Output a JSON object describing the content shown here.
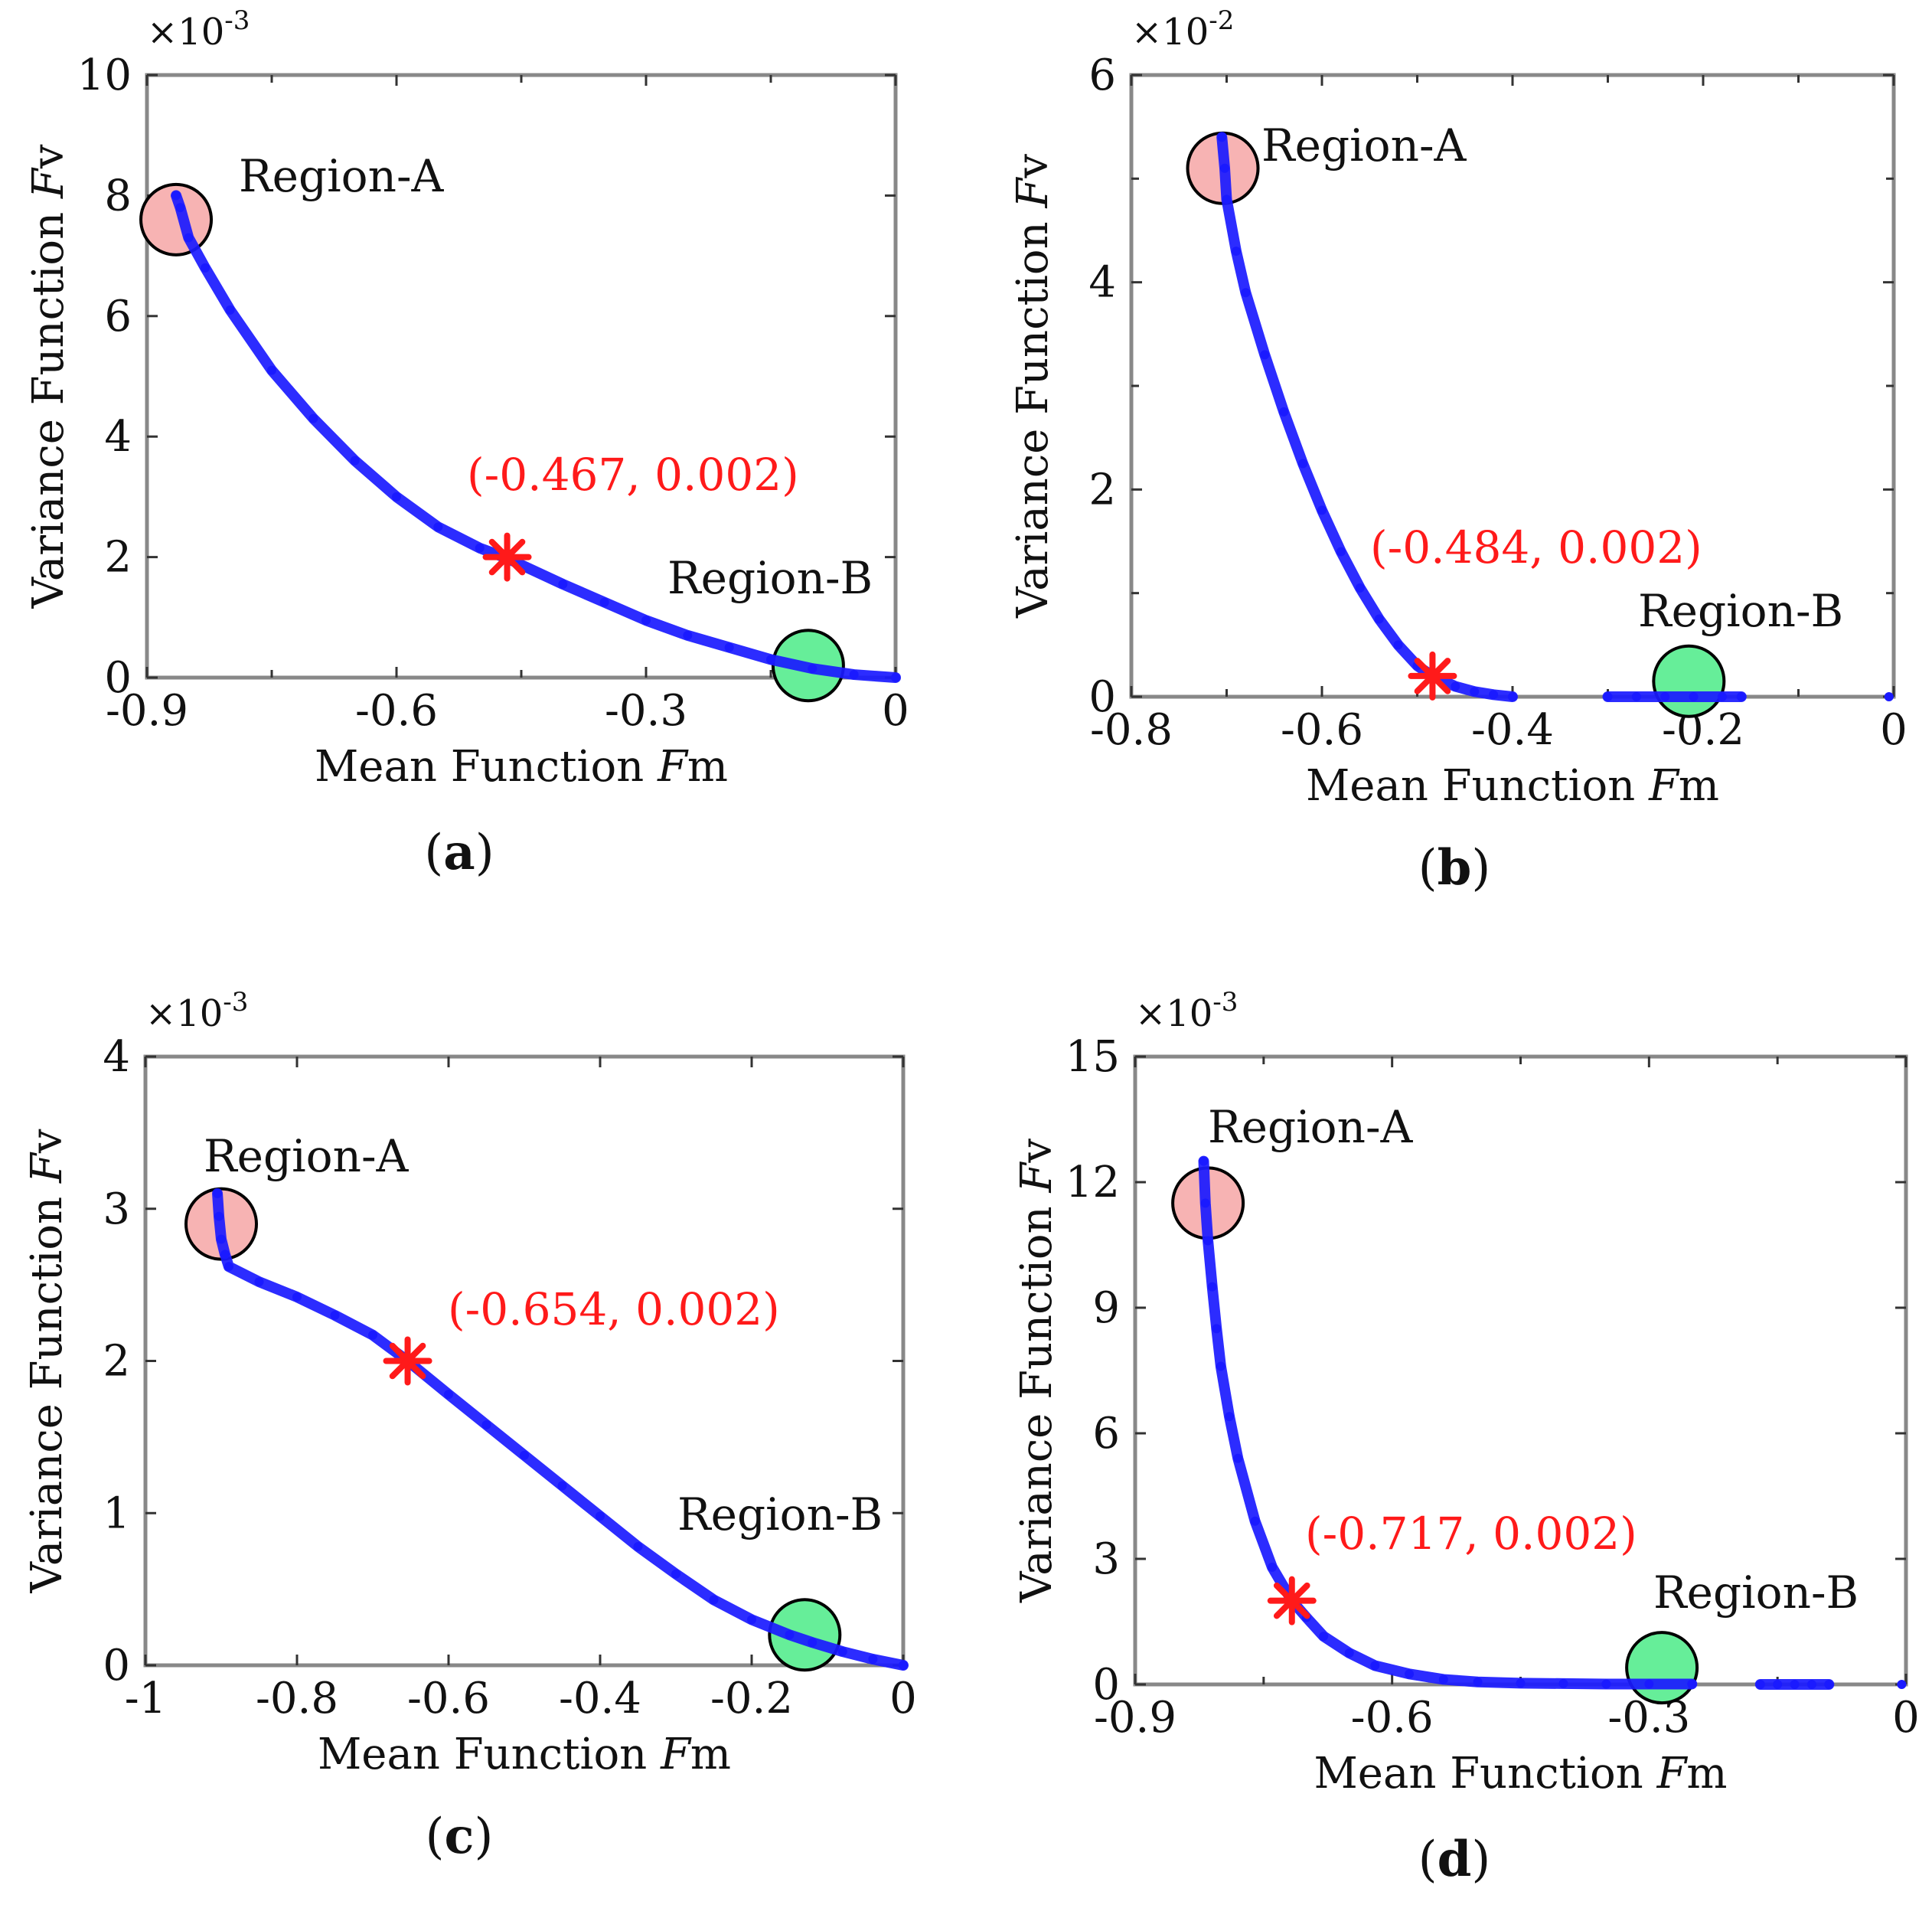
{
  "colors": {
    "curve": "#1a1aff",
    "marker": "#ff1a1a",
    "region_a_fill": "#f7b3b3",
    "region_b_fill": "#66ee99",
    "axes_frame": "#888888"
  },
  "chart_data": [
    {
      "type": "scatter",
      "panel_label": "a",
      "xlabel": {
        "text": "Mean Function ",
        "italic": "F",
        "suffix": "m"
      },
      "ylabel": {
        "text": "Variance Function ",
        "italic": "F",
        "suffix": "v"
      },
      "y_multiplier": {
        "base": "×10",
        "exp": "-3"
      },
      "xlim": [
        -0.9,
        0
      ],
      "ylim": [
        0,
        10
      ],
      "xticks": [
        -0.9,
        -0.6,
        -0.3,
        0
      ],
      "xtick_labels": [
        "-0.9",
        "-0.6",
        "-0.3",
        "0"
      ],
      "yticks": [
        0,
        2,
        4,
        6,
        8,
        10
      ],
      "ytick_labels": [
        "0",
        "2",
        "4",
        "6",
        "8",
        "10"
      ],
      "x_minor_ticks": [
        -0.75,
        -0.45,
        -0.15
      ],
      "series": [
        {
          "x": [
            -0.865,
            -0.86,
            -0.85,
            -0.83,
            -0.8,
            -0.75,
            -0.7,
            -0.65,
            -0.6,
            -0.55,
            -0.5,
            -0.467,
            -0.4,
            -0.35,
            -0.3,
            -0.25,
            -0.2,
            -0.15,
            -0.1,
            -0.05,
            0
          ],
          "y": [
            8.0,
            7.8,
            7.3,
            6.8,
            6.1,
            5.1,
            4.3,
            3.6,
            3.0,
            2.5,
            2.15,
            1.98,
            1.55,
            1.25,
            0.95,
            0.7,
            0.5,
            0.3,
            0.15,
            0.05,
            0.0
          ]
        }
      ],
      "highlight_point": {
        "x": -0.467,
        "y": 2.0,
        "label": "(-0.467, 0.002)"
      },
      "regions": [
        {
          "label": "Region-A",
          "x": -0.865,
          "y": 7.6
        },
        {
          "label": "Region-B",
          "x": -0.105,
          "y": 0.2
        }
      ]
    },
    {
      "type": "scatter",
      "panel_label": "b",
      "xlabel": {
        "text": "Mean Function ",
        "italic": "F",
        "suffix": "m"
      },
      "ylabel": {
        "text": "Variance Function ",
        "italic": "F",
        "suffix": "v"
      },
      "y_multiplier": {
        "base": "×10",
        "exp": "-2"
      },
      "xlim": [
        -0.8,
        0
      ],
      "ylim": [
        0,
        6
      ],
      "xticks": [
        -0.8,
        -0.6,
        -0.4,
        -0.2,
        0
      ],
      "xtick_labels": [
        "-0.8",
        "-0.6",
        "-0.4",
        "-0.2",
        "0"
      ],
      "yticks": [
        0,
        2,
        4,
        6
      ],
      "ytick_labels": [
        "0",
        "2",
        "4",
        "6"
      ],
      "x_minor_ticks": [
        -0.7,
        -0.5,
        -0.3,
        -0.1
      ],
      "y_minor_ticks": [
        1,
        3,
        5
      ],
      "series": [
        {
          "x": [
            -0.705,
            -0.702,
            -0.7,
            -0.69,
            -0.68,
            -0.66,
            -0.64,
            -0.62,
            -0.6,
            -0.58,
            -0.56,
            -0.54,
            -0.52,
            -0.5,
            -0.484,
            -0.46,
            -0.44,
            -0.42,
            -0.4
          ],
          "y": [
            5.4,
            5.1,
            4.8,
            4.3,
            3.9,
            3.3,
            2.75,
            2.25,
            1.8,
            1.4,
            1.05,
            0.75,
            0.5,
            0.3,
            0.2,
            0.1,
            0.05,
            0.02,
            0.0
          ]
        },
        {
          "x": [
            -0.3,
            -0.27,
            -0.24,
            -0.21,
            -0.18,
            -0.16
          ],
          "y": [
            0,
            0,
            0,
            0,
            0,
            0
          ]
        },
        {
          "x": [
            -0.005
          ],
          "y": [
            0
          ]
        }
      ],
      "highlight_point": {
        "x": -0.484,
        "y": 0.2,
        "label": "(-0.484, 0.002)"
      },
      "regions": [
        {
          "label": "Region-A",
          "x": -0.704,
          "y": 5.1
        },
        {
          "label": "Region-B",
          "x": -0.215,
          "y": 0.15
        }
      ]
    },
    {
      "type": "scatter",
      "panel_label": "c",
      "xlabel": {
        "text": "Mean Function ",
        "italic": "F",
        "suffix": "m"
      },
      "ylabel": {
        "text": "Variance Function ",
        "italic": "F",
        "suffix": "v"
      },
      "y_multiplier": {
        "base": "×10",
        "exp": "-3"
      },
      "xlim": [
        -1,
        0
      ],
      "ylim": [
        0,
        4
      ],
      "xticks": [
        -1,
        -0.8,
        -0.6,
        -0.4,
        -0.2,
        0
      ],
      "xtick_labels": [
        "-1",
        "-0.8",
        "-0.6",
        "-0.4",
        "-0.2",
        "0"
      ],
      "yticks": [
        0,
        1,
        2,
        3,
        4
      ],
      "ytick_labels": [
        "0",
        "1",
        "2",
        "3",
        "4"
      ],
      "series": [
        {
          "x": [
            -0.905,
            -0.903,
            -0.9,
            -0.895,
            -0.89,
            -0.85,
            -0.8,
            -0.75,
            -0.7,
            -0.654,
            -0.6,
            -0.55,
            -0.5,
            -0.45,
            -0.4,
            -0.35,
            -0.3,
            -0.25,
            -0.2,
            -0.15,
            -0.12,
            -0.08,
            -0.04,
            0
          ],
          "y": [
            3.1,
            2.95,
            2.8,
            2.7,
            2.62,
            2.52,
            2.42,
            2.3,
            2.17,
            2.0,
            1.78,
            1.58,
            1.38,
            1.18,
            0.98,
            0.78,
            0.6,
            0.43,
            0.3,
            0.2,
            0.15,
            0.09,
            0.04,
            0.0
          ]
        }
      ],
      "highlight_point": {
        "x": -0.654,
        "y": 2.0,
        "label": "(-0.654, 0.002)"
      },
      "regions": [
        {
          "label": "Region-A",
          "x": -0.9,
          "y": 2.9
        },
        {
          "label": "Region-B",
          "x": -0.13,
          "y": 0.2
        }
      ]
    },
    {
      "type": "scatter",
      "panel_label": "d",
      "xlabel": {
        "text": "Mean Function ",
        "italic": "F",
        "suffix": "m"
      },
      "ylabel": {
        "text": "Variance Function ",
        "italic": "F",
        "suffix": "v"
      },
      "y_multiplier": {
        "base": "×10",
        "exp": "-3"
      },
      "xlim": [
        -0.9,
        0
      ],
      "ylim": [
        0,
        15
      ],
      "xticks": [
        -0.9,
        -0.6,
        -0.3,
        0
      ],
      "xtick_labels": [
        "-0.9",
        "-0.6",
        "-0.3",
        "0"
      ],
      "yticks": [
        0,
        3,
        6,
        9,
        12,
        15
      ],
      "ytick_labels": [
        "0",
        "3",
        "6",
        "9",
        "12",
        "15"
      ],
      "x_minor_ticks": [
        -0.75,
        -0.45,
        -0.15
      ],
      "series": [
        {
          "x": [
            -0.82,
            -0.818,
            -0.815,
            -0.81,
            -0.805,
            -0.8,
            -0.79,
            -0.78,
            -0.76,
            -0.74,
            -0.717,
            -0.7,
            -0.68,
            -0.65,
            -0.62,
            -0.58,
            -0.54,
            -0.5,
            -0.45,
            -0.4,
            -0.35,
            -0.3,
            -0.25
          ],
          "y": [
            12.5,
            11.5,
            10.6,
            9.5,
            8.5,
            7.6,
            6.4,
            5.4,
            3.9,
            2.8,
            2.0,
            1.6,
            1.15,
            0.75,
            0.45,
            0.25,
            0.12,
            0.06,
            0.03,
            0.02,
            0.01,
            0.01,
            0.01
          ]
        },
        {
          "x": [
            -0.17,
            -0.15,
            -0.13,
            -0.11,
            -0.09
          ],
          "y": [
            0,
            0,
            0,
            0,
            0
          ]
        },
        {
          "x": [
            -0.005
          ],
          "y": [
            0
          ]
        }
      ],
      "highlight_point": {
        "x": -0.717,
        "y": 2.0,
        "label": "(-0.717, 0.002)"
      },
      "regions": [
        {
          "label": "Region-A",
          "x": -0.815,
          "y": 11.5
        },
        {
          "label": "Region-B",
          "x": -0.285,
          "y": 0.4
        }
      ]
    }
  ]
}
